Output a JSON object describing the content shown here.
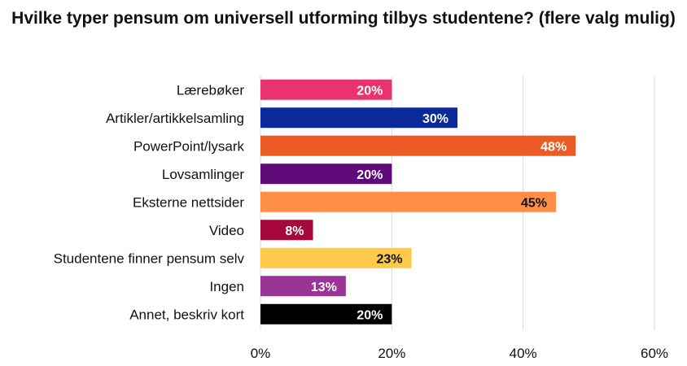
{
  "chart_data": {
    "type": "bar",
    "orientation": "horizontal",
    "title": "Hvilke typer pensum om universell utforming tilbys studentene? (flere valg mulig)",
    "categories": [
      "Lærebøker",
      "Artikler/artikkelsamling",
      "PowerPoint/lysark",
      "Lovsamlinger",
      "Eksterne nettsider",
      "Video",
      "Studentene finner pensum selv",
      "Ingen",
      "Annet, beskriv kort"
    ],
    "values": [
      20,
      30,
      48,
      20,
      45,
      8,
      23,
      13,
      20
    ],
    "data_labels": [
      "20%",
      "30%",
      "48%",
      "20%",
      "45%",
      "8%",
      "23%",
      "13%",
      "20%"
    ],
    "colors": [
      "#e8336f",
      "#0a2a9c",
      "#ec5b24",
      "#5e0a78",
      "#ff8e47",
      "#a5083d",
      "#ffc94a",
      "#9a3497",
      "#000000"
    ],
    "label_colors": [
      "#ffffff",
      "#ffffff",
      "#ffffff",
      "#ffffff",
      "#111111",
      "#ffffff",
      "#111111",
      "#ffffff",
      "#ffffff"
    ],
    "xlim": [
      0,
      60
    ],
    "xticks": [
      0,
      20,
      40,
      60
    ],
    "xtick_labels": [
      "0%",
      "20%",
      "40%",
      "60%"
    ],
    "grid": true,
    "legend": "none"
  }
}
